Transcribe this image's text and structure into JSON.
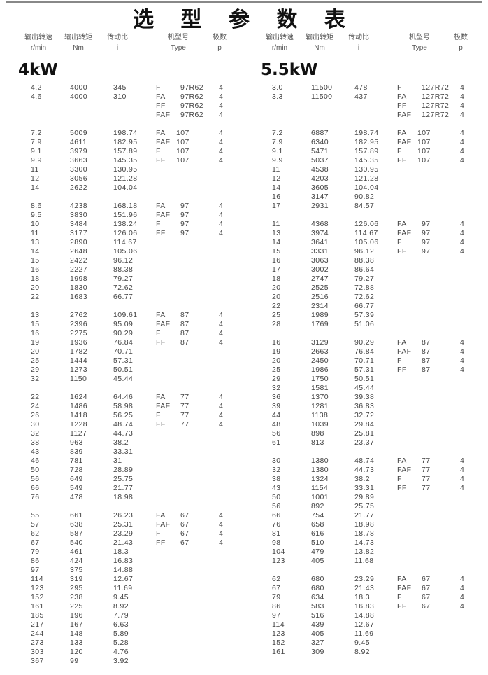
{
  "title": "选 型 参 数 表",
  "headers": [
    {
      "cn": "输出转速",
      "unit": "r/min"
    },
    {
      "cn": "输出转矩",
      "unit": "Nm"
    },
    {
      "cn": "传动比",
      "unit": "i"
    },
    {
      "cn": "机型号",
      "unit": "Type"
    },
    {
      "cn": "极数",
      "unit": "p"
    }
  ],
  "sections": [
    {
      "power": "4kW",
      "groups": [
        {
          "rows": [
            [
              "4.2",
              "4000",
              "345"
            ],
            [
              "4.6",
              "4000",
              "310"
            ]
          ],
          "types": [
            [
              "F",
              "97R62",
              "4"
            ],
            [
              "FA",
              "97R62",
              "4"
            ],
            [
              "FF",
              "97R62",
              "4"
            ],
            [
              "FAF",
              "97R62",
              "4"
            ]
          ]
        },
        {
          "rows": [
            [
              "7.2",
              "5009",
              "198.74"
            ],
            [
              "7.9",
              "4611",
              "182.95"
            ],
            [
              "9.1",
              "3979",
              "157.89"
            ],
            [
              "9.9",
              "3663",
              "145.35"
            ],
            [
              "11",
              "3300",
              "130.95"
            ],
            [
              "12",
              "3056",
              "121.28"
            ],
            [
              "14",
              "2622",
              "104.04"
            ]
          ],
          "types": [
            [
              "FA",
              "107",
              "4"
            ],
            [
              "FAF",
              "107",
              "4"
            ],
            [
              "F",
              "107",
              "4"
            ],
            [
              "FF",
              "107",
              "4"
            ]
          ]
        },
        {
          "rows": [
            [
              "8.6",
              "4238",
              "168.18"
            ],
            [
              "9.5",
              "3830",
              "151.96"
            ],
            [
              "10",
              "3484",
              "138.24"
            ],
            [
              "11",
              "3177",
              "126.06"
            ],
            [
              "13",
              "2890",
              "114.67"
            ],
            [
              "14",
              "2648",
              "105.06"
            ],
            [
              "15",
              "2422",
              "96.12"
            ],
            [
              "16",
              "2227",
              "88.38"
            ],
            [
              "18",
              "1998",
              "79.27"
            ],
            [
              "20",
              "1830",
              "72.62"
            ],
            [
              "22",
              "1683",
              "66.77"
            ]
          ],
          "types": [
            [
              "FA",
              "97",
              "4"
            ],
            [
              "FAF",
              "97",
              "4"
            ],
            [
              "F",
              "97",
              "4"
            ],
            [
              "FF",
              "97",
              "4"
            ]
          ]
        },
        {
          "rows": [
            [
              "13",
              "2762",
              "109.61"
            ],
            [
              "15",
              "2396",
              "95.09"
            ],
            [
              "16",
              "2275",
              "90.29"
            ],
            [
              "19",
              "1936",
              "76.84"
            ],
            [
              "20",
              "1782",
              "70.71"
            ],
            [
              "25",
              "1444",
              "57.31"
            ],
            [
              "29",
              "1273",
              "50.51"
            ],
            [
              "32",
              "1150",
              "45.44"
            ]
          ],
          "types": [
            [
              "FA",
              "87",
              "4"
            ],
            [
              "FAF",
              "87",
              "4"
            ],
            [
              "F",
              "87",
              "4"
            ],
            [
              "FF",
              "87",
              "4"
            ]
          ]
        },
        {
          "rows": [
            [
              "22",
              "1624",
              "64.46"
            ],
            [
              "24",
              "1486",
              "58.98"
            ],
            [
              "26",
              "1418",
              "56.25"
            ],
            [
              "30",
              "1228",
              "48.74"
            ],
            [
              "32",
              "1127",
              "44.73"
            ],
            [
              "38",
              "963",
              "38.2"
            ],
            [
              "43",
              "839",
              "33.31"
            ],
            [
              "46",
              "781",
              "31"
            ],
            [
              "50",
              "728",
              "28.89"
            ],
            [
              "56",
              "649",
              "25.75"
            ],
            [
              "66",
              "549",
              "21.77"
            ],
            [
              "76",
              "478",
              "18.98"
            ]
          ],
          "types": [
            [
              "FA",
              "77",
              "4"
            ],
            [
              "FAF",
              "77",
              "4"
            ],
            [
              "F",
              "77",
              "4"
            ],
            [
              "FF",
              "77",
              "4"
            ]
          ]
        },
        {
          "rows": [
            [
              "55",
              "661",
              "26.23"
            ],
            [
              "57",
              "638",
              "25.31"
            ],
            [
              "62",
              "587",
              "23.29"
            ],
            [
              "67",
              "540",
              "21.43"
            ],
            [
              "79",
              "461",
              "18.3"
            ],
            [
              "86",
              "424",
              "16.83"
            ],
            [
              "97",
              "375",
              "14.88"
            ],
            [
              "114",
              "319",
              "12.67"
            ],
            [
              "123",
              "295",
              "11.69"
            ],
            [
              "152",
              "238",
              "9.45"
            ],
            [
              "161",
              "225",
              "8.92"
            ],
            [
              "185",
              "196",
              "7.79"
            ],
            [
              "217",
              "167",
              "6.63"
            ],
            [
              "244",
              "148",
              "5.89"
            ],
            [
              "273",
              "133",
              "5.28"
            ],
            [
              "303",
              "120",
              "4.76"
            ],
            [
              "367",
              "99",
              "3.92"
            ]
          ],
          "types": [
            [
              "FA",
              "67",
              "4"
            ],
            [
              "FAF",
              "67",
              "4"
            ],
            [
              "F",
              "67",
              "4"
            ],
            [
              "FF",
              "67",
              "4"
            ]
          ]
        }
      ]
    },
    {
      "power": "5.5kW",
      "groups": [
        {
          "rows": [
            [
              "3.0",
              "11500",
              "478"
            ],
            [
              "3.3",
              "11500",
              "437"
            ]
          ],
          "types": [
            [
              "F",
              "127R72",
              "4"
            ],
            [
              "FA",
              "127R72",
              "4"
            ],
            [
              "FF",
              "127R72",
              "4"
            ],
            [
              "FAF",
              "127R72",
              "4"
            ]
          ]
        },
        {
          "rows": [
            [
              "7.2",
              "6887",
              "198.74"
            ],
            [
              "7.9",
              "6340",
              "182.95"
            ],
            [
              "9.1",
              "5471",
              "157.89"
            ],
            [
              "9.9",
              "5037",
              "145.35"
            ],
            [
              "11",
              "4538",
              "130.95"
            ],
            [
              "12",
              "4203",
              "121.28"
            ],
            [
              "14",
              "3605",
              "104.04"
            ],
            [
              "16",
              "3147",
              "90.82"
            ],
            [
              "17",
              "2931",
              "84.57"
            ]
          ],
          "types": [
            [
              "FA",
              "107",
              "4"
            ],
            [
              "FAF",
              "107",
              "4"
            ],
            [
              "F",
              "107",
              "4"
            ],
            [
              "FF",
              "107",
              "4"
            ]
          ]
        },
        {
          "rows": [
            [
              "11",
              "4368",
              "126.06"
            ],
            [
              "13",
              "3974",
              "114.67"
            ],
            [
              "14",
              "3641",
              "105.06"
            ],
            [
              "15",
              "3331",
              "96.12"
            ],
            [
              "16",
              "3063",
              "88.38"
            ],
            [
              "17",
              "3002",
              "86.64"
            ],
            [
              "18",
              "2747",
              "79.27"
            ],
            [
              "20",
              "2525",
              "72.88"
            ],
            [
              "20",
              "2516",
              "72.62"
            ],
            [
              "22",
              "2314",
              "66.77"
            ],
            [
              "25",
              "1989",
              "57.39"
            ],
            [
              "28",
              "1769",
              "51.06"
            ]
          ],
          "types": [
            [
              "FA",
              "97",
              "4"
            ],
            [
              "FAF",
              "97",
              "4"
            ],
            [
              "F",
              "97",
              "4"
            ],
            [
              "FF",
              "97",
              "4"
            ]
          ]
        },
        {
          "rows": [
            [
              "16",
              "3129",
              "90.29"
            ],
            [
              "19",
              "2663",
              "76.84"
            ],
            [
              "20",
              "2450",
              "70.71"
            ],
            [
              "25",
              "1986",
              "57.31"
            ],
            [
              "29",
              "1750",
              "50.51"
            ],
            [
              "32",
              "1581",
              "45.44"
            ],
            [
              "36",
              "1370",
              "39.38"
            ],
            [
              "39",
              "1281",
              "36.83"
            ],
            [
              "44",
              "1138",
              "32.72"
            ],
            [
              "48",
              "1039",
              "29.84"
            ],
            [
              "56",
              "898",
              "25.81"
            ],
            [
              "61",
              "813",
              "23.37"
            ]
          ],
          "types": [
            [
              "FA",
              "87",
              "4"
            ],
            [
              "FAF",
              "87",
              "4"
            ],
            [
              "F",
              "87",
              "4"
            ],
            [
              "FF",
              "87",
              "4"
            ]
          ]
        },
        {
          "rows": [
            [
              "30",
              "1380",
              "48.74"
            ],
            [
              "32",
              "1380",
              "44.73"
            ],
            [
              "38",
              "1324",
              "38.2"
            ],
            [
              "43",
              "1154",
              "33.31"
            ],
            [
              "50",
              "1001",
              "29.89"
            ],
            [
              "56",
              "892",
              "25.75"
            ],
            [
              "66",
              "754",
              "21.77"
            ],
            [
              "76",
              "658",
              "18.98"
            ],
            [
              "81",
              "616",
              "18.78"
            ],
            [
              "98",
              "510",
              "14.73"
            ],
            [
              "104",
              "479",
              "13.82"
            ],
            [
              "123",
              "405",
              "11.68"
            ]
          ],
          "types": [
            [
              "FA",
              "77",
              "4"
            ],
            [
              "FAF",
              "77",
              "4"
            ],
            [
              "F",
              "77",
              "4"
            ],
            [
              "FF",
              "77",
              "4"
            ]
          ]
        },
        {
          "rows": [
            [
              "62",
              "680",
              "23.29"
            ],
            [
              "67",
              "680",
              "21.43"
            ],
            [
              "79",
              "634",
              "18.3"
            ],
            [
              "86",
              "583",
              "16.83"
            ],
            [
              "97",
              "516",
              "14.88"
            ],
            [
              "114",
              "439",
              "12.67"
            ],
            [
              "123",
              "405",
              "11.69"
            ],
            [
              "152",
              "327",
              "9.45"
            ],
            [
              "161",
              "309",
              "8.92"
            ]
          ],
          "types": [
            [
              "FA",
              "67",
              "4"
            ],
            [
              "FAF",
              "67",
              "4"
            ],
            [
              "F",
              "67",
              "4"
            ],
            [
              "FF",
              "67",
              "4"
            ]
          ]
        }
      ]
    }
  ]
}
